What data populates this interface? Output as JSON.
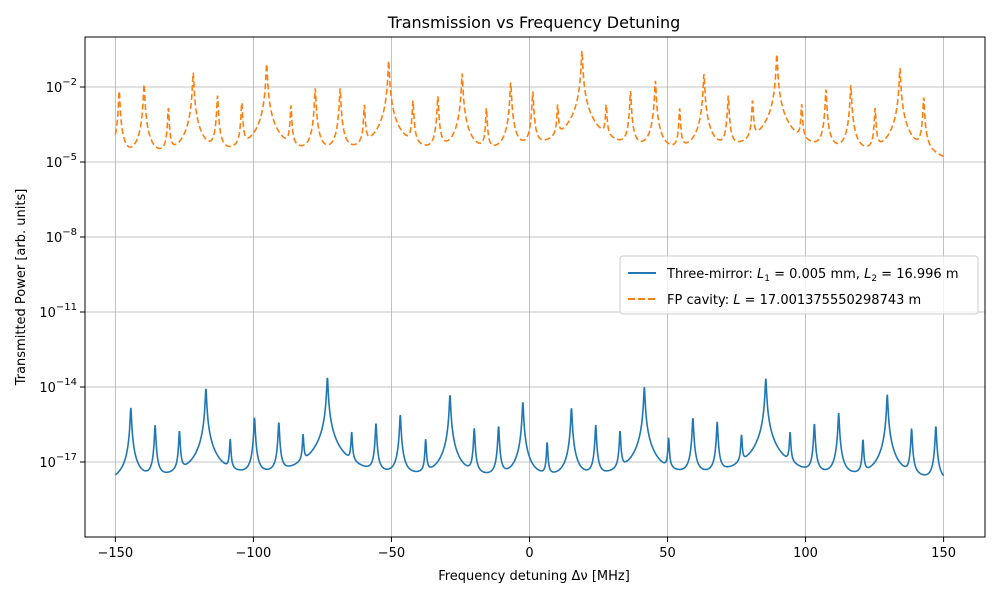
{
  "chart_data": {
    "type": "line",
    "title": "Transmission vs Frequency Detuning",
    "xlabel": "Frequency detuning Δν [MHz]",
    "ylabel": "Transmitted Power [arb. units]",
    "xlim": [
      -161,
      165
    ],
    "ylim": [
      1e-20,
      1.0
    ],
    "log_y": true,
    "grid": true,
    "legend_position": "center-right",
    "x_ticks": [
      -150,
      -100,
      -50,
      0,
      50,
      100,
      150
    ],
    "x_tick_labels": [
      "−150",
      "−100",
      "−50",
      "0",
      "50",
      "100",
      "150"
    ],
    "y_ticks": [
      1e-17,
      1e-14,
      1e-11,
      1e-08,
      1e-05,
      0.01
    ],
    "y_tick_exponents": [
      "−17",
      "−14",
      "−11",
      "−8",
      "−5",
      "−2"
    ],
    "series": [
      {
        "name_parts": {
          "prefix": "Three-mirror: ",
          "var1": "L",
          "sub1": "1",
          "eq1": " = 0.005 mm, ",
          "var2": "L",
          "sub2": "2",
          "eq2": " = 16.996 m"
        },
        "color": "#1f77b4",
        "dash": "solid",
        "baseline": 1e-18,
        "peaks": [
          {
            "x": -144.4,
            "y": 1.5e-15
          },
          {
            "x": -135.6,
            "y": 3e-16
          },
          {
            "x": -126.8,
            "y": 1.8e-16
          },
          {
            "x": -117.2,
            "y": 9e-15
          },
          {
            "x": -108.4,
            "y": 8e-17
          },
          {
            "x": -99.6,
            "y": 6e-16
          },
          {
            "x": -90.8,
            "y": 4e-16
          },
          {
            "x": -82.0,
            "y": 1.2e-16
          },
          {
            "x": -73.2,
            "y": 2.5e-14
          },
          {
            "x": -64.4,
            "y": 1.5e-16
          },
          {
            "x": -55.6,
            "y": 3.5e-16
          },
          {
            "x": -46.8,
            "y": 8e-16
          },
          {
            "x": -37.6,
            "y": 8e-17
          },
          {
            "x": -28.8,
            "y": 5e-15
          },
          {
            "x": -20.0,
            "y": 2.2e-16
          },
          {
            "x": -11.2,
            "y": 2.8e-16
          },
          {
            "x": -2.4,
            "y": 2.5e-15
          },
          {
            "x": 6.4,
            "y": 6e-17
          },
          {
            "x": 15.2,
            "y": 1.5e-15
          },
          {
            "x": 24.0,
            "y": 3e-16
          },
          {
            "x": 32.8,
            "y": 1.8e-16
          },
          {
            "x": 41.6,
            "y": 1e-14
          },
          {
            "x": 50.4,
            "y": 9e-17
          },
          {
            "x": 59.2,
            "y": 6e-16
          },
          {
            "x": 68.0,
            "y": 4e-16
          },
          {
            "x": 76.8,
            "y": 1.2e-16
          },
          {
            "x": 85.6,
            "y": 2.2e-14
          },
          {
            "x": 94.4,
            "y": 1.5e-16
          },
          {
            "x": 103.2,
            "y": 3.5e-16
          },
          {
            "x": 112.0,
            "y": 9e-16
          },
          {
            "x": 120.8,
            "y": 8e-17
          },
          {
            "x": 129.6,
            "y": 5e-15
          },
          {
            "x": 138.4,
            "y": 2.2e-16
          },
          {
            "x": 147.2,
            "y": 2.8e-16
          }
        ]
      },
      {
        "name_parts": {
          "prefix": "FP cavity: ",
          "var1": "L",
          "eq1": " = 17.001375550298743 m"
        },
        "color": "#ff7f0e",
        "dash": "dashed",
        "baseline": 3e-06,
        "peaks": [
          {
            "x": -148.6,
            "y": 0.007
          },
          {
            "x": -139.6,
            "y": 0.013
          },
          {
            "x": -130.8,
            "y": 0.0015
          },
          {
            "x": -121.8,
            "y": 0.04
          },
          {
            "x": -113.0,
            "y": 0.0045
          },
          {
            "x": -104.2,
            "y": 0.0025
          },
          {
            "x": -95.2,
            "y": 0.09
          },
          {
            "x": -86.4,
            "y": 0.0018
          },
          {
            "x": -77.6,
            "y": 0.009
          },
          {
            "x": -68.6,
            "y": 0.009
          },
          {
            "x": -59.8,
            "y": 0.002
          },
          {
            "x": -51.0,
            "y": 0.11
          },
          {
            "x": -42.2,
            "y": 0.003
          },
          {
            "x": -33.2,
            "y": 0.0045
          },
          {
            "x": -24.4,
            "y": 0.035
          },
          {
            "x": -15.6,
            "y": 0.0014
          },
          {
            "x": -6.8,
            "y": 0.016
          },
          {
            "x": 1.2,
            "y": 0.007
          },
          {
            "x": 10.2,
            "y": 0.002
          },
          {
            "x": 19.0,
            "y": 0.28
          },
          {
            "x": 27.8,
            "y": 0.002
          },
          {
            "x": 36.6,
            "y": 0.007
          },
          {
            "x": 45.6,
            "y": 0.018
          },
          {
            "x": 54.4,
            "y": 0.0014
          },
          {
            "x": 63.2,
            "y": 0.035
          },
          {
            "x": 72.0,
            "y": 0.0045
          },
          {
            "x": 80.8,
            "y": 0.003
          },
          {
            "x": 89.6,
            "y": 0.21
          },
          {
            "x": 98.6,
            "y": 0.002
          },
          {
            "x": 107.4,
            "y": 0.008
          },
          {
            "x": 116.4,
            "y": 0.012
          },
          {
            "x": 125.2,
            "y": 0.0015
          },
          {
            "x": 134.2,
            "y": 0.06
          },
          {
            "x": 142.8,
            "y": 0.004
          }
        ]
      }
    ]
  }
}
